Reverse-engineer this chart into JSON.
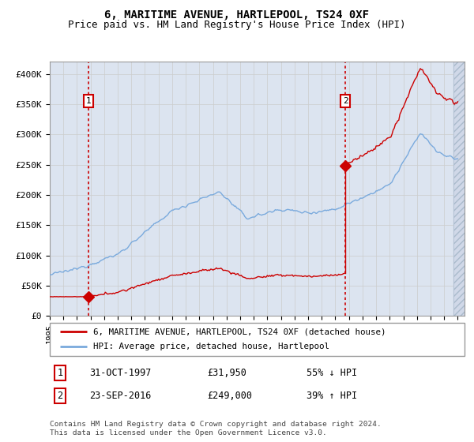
{
  "title": "6, MARITIME AVENUE, HARTLEPOOL, TS24 0XF",
  "subtitle": "Price paid vs. HM Land Registry's House Price Index (HPI)",
  "ylim": [
    0,
    420000
  ],
  "yticks": [
    0,
    50000,
    100000,
    150000,
    200000,
    250000,
    300000,
    350000,
    400000
  ],
  "ytick_labels": [
    "£0",
    "£50K",
    "£100K",
    "£150K",
    "£200K",
    "£250K",
    "£300K",
    "£350K",
    "£400K"
  ],
  "xlim_start": 1995,
  "xlim_end": 2025.5,
  "sale1_date": 1997.83,
  "sale1_price": 31950,
  "sale2_date": 2016.73,
  "sale2_price": 249000,
  "legend_line1": "6, MARITIME AVENUE, HARTLEPOOL, TS24 0XF (detached house)",
  "legend_line2": "HPI: Average price, detached house, Hartlepool",
  "table_row1_num": "1",
  "table_row1_date": "31-OCT-1997",
  "table_row1_price": "£31,950",
  "table_row1_hpi": "55% ↓ HPI",
  "table_row2_num": "2",
  "table_row2_date": "23-SEP-2016",
  "table_row2_price": "£249,000",
  "table_row2_hpi": "39% ↑ HPI",
  "footer": "Contains HM Land Registry data © Crown copyright and database right 2024.\nThis data is licensed under the Open Government Licence v3.0.",
  "grid_color": "#cccccc",
  "bg_color": "#dce4f0",
  "sale_color": "#cc0000",
  "hpi_color": "#7aaadd",
  "hatch_bg": "#d0d8e8",
  "title_fontsize": 10,
  "subtitle_fontsize": 9,
  "label_fontsize": 8.5,
  "tick_fontsize": 8
}
